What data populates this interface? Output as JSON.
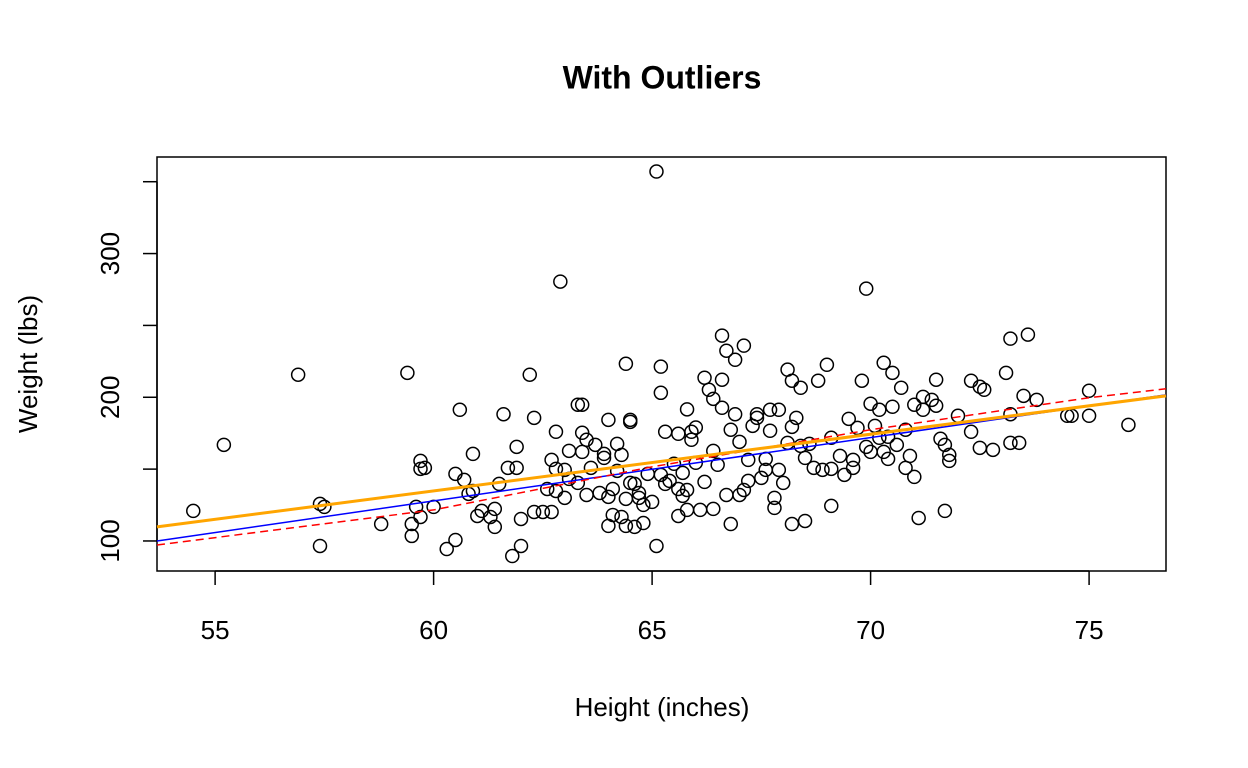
{
  "chart_data": {
    "type": "scatter",
    "title": "With Outliers",
    "x_label": "Height (inches)",
    "y_label": "Weight (lbs)",
    "xlim": [
      53.67,
      76.76
    ],
    "ylim": [
      79.1,
      367.2
    ],
    "xticks": [
      55,
      60,
      65,
      70,
      75
    ],
    "yticks": [
      100,
      200,
      300
    ],
    "ytick_marks": [
      150,
      250,
      350
    ],
    "point_color": "#000000",
    "x": [
      54.5,
      55.2,
      56.9,
      57.4,
      57.5,
      57.4,
      58.8,
      59.4,
      59.5,
      59.5,
      59.6,
      59.7,
      59.7,
      59.7,
      59.8,
      60.0,
      60.3,
      60.5,
      60.5,
      60.6,
      60.7,
      60.8,
      60.9,
      60.9,
      61.0,
      61.1,
      61.3,
      61.4,
      61.4,
      61.5,
      61.6,
      61.7,
      61.8,
      61.9,
      61.9,
      62.0,
      62.0,
      62.2,
      62.3,
      62.3,
      62.5,
      62.6,
      62.7,
      62.8,
      62.8,
      62.7,
      62.8,
      62.9,
      63.0,
      63.0,
      63.1,
      63.1,
      63.3,
      63.3,
      63.4,
      63.4,
      63.4,
      63.5,
      63.5,
      63.6,
      63.7,
      63.8,
      63.9,
      63.9,
      64.0,
      64.0,
      64.0,
      64.1,
      64.1,
      64.2,
      64.2,
      64.3,
      64.3,
      64.4,
      64.4,
      64.4,
      64.5,
      64.5,
      64.5,
      64.6,
      64.6,
      64.7,
      64.7,
      64.8,
      64.8,
      64.9,
      65.0,
      65.1,
      65.1,
      65.2,
      65.2,
      65.2,
      65.3,
      65.3,
      65.4,
      65.5,
      65.6,
      65.6,
      65.6,
      65.7,
      65.7,
      65.8,
      65.8,
      65.8,
      65.9,
      65.9,
      66.0,
      66.0,
      66.1,
      66.2,
      66.2,
      66.3,
      66.4,
      66.4,
      66.4,
      66.5,
      66.6,
      66.6,
      66.6,
      66.7,
      66.7,
      66.8,
      66.8,
      66.9,
      66.9,
      67.0,
      67.0,
      67.1,
      67.1,
      67.2,
      67.2,
      67.3,
      67.4,
      67.4,
      67.5,
      67.6,
      67.6,
      67.7,
      67.7,
      67.8,
      67.8,
      67.9,
      67.9,
      68.0,
      68.1,
      68.1,
      68.2,
      68.2,
      68.2,
      68.3,
      68.4,
      68.4,
      68.5,
      68.5,
      68.6,
      68.7,
      68.8,
      68.9,
      69.0,
      69.1,
      69.1,
      69.1,
      69.3,
      69.4,
      69.5,
      69.6,
      69.6,
      69.7,
      69.8,
      69.9,
      69.9,
      70.0,
      70.0,
      70.1,
      70.2,
      70.2,
      70.3,
      70.3,
      70.4,
      70.4,
      70.5,
      70.5,
      70.6,
      70.7,
      70.8,
      70.8,
      70.9,
      71.0,
      71.0,
      71.1,
      71.2,
      71.2,
      71.4,
      71.5,
      71.5,
      71.6,
      71.7,
      71.7,
      71.8,
      71.8,
      72.0,
      72.3,
      72.3,
      72.5,
      72.5,
      72.6,
      72.8,
      73.1,
      73.2,
      73.2,
      73.2,
      73.4,
      73.5,
      73.6,
      73.8,
      74.5,
      74.6,
      75.0,
      75.0,
      75.9
    ],
    "values": [
      120.9,
      166.9,
      215.7,
      125.8,
      123.7,
      96.5,
      111.8,
      217,
      111.8,
      103.5,
      123.7,
      116.7,
      155.7,
      150.2,
      150.9,
      123.7,
      94.4,
      146.7,
      100.7,
      191.3,
      142.5,
      132.8,
      160.6,
      134.8,
      117.4,
      120.9,
      116.7,
      122.3,
      109.8,
      139.7,
      188.2,
      150.9,
      89.5,
      165.5,
      150.9,
      96.5,
      115.3,
      215.7,
      185.7,
      120.2,
      120.2,
      136.2,
      156.4,
      150.2,
      176,
      120.2,
      134.8,
      280.5,
      130,
      149.5,
      162.7,
      143.2,
      140.4,
      194.8,
      194.8,
      175.3,
      162,
      170.4,
      132,
      150.9,
      166.9,
      133.4,
      157.8,
      160.6,
      184.3,
      110.5,
      130.7,
      136.2,
      118.1,
      148.8,
      167.6,
      116.7,
      159.9,
      129.3,
      223.3,
      110.5,
      184.3,
      182.9,
      140.4,
      139.7,
      109.8,
      133.4,
      130,
      112.5,
      125.1,
      146.7,
      127.2,
      96.5,
      357.1,
      146,
      203.1,
      221.3,
      176,
      139.7,
      141.8,
      153.7,
      117.4,
      136.2,
      174.6,
      147.4,
      131.4,
      135.5,
      191.6,
      121.6,
      176,
      170.4,
      179,
      154.4,
      121.6,
      141.1,
      213.6,
      205.2,
      122.3,
      162.7,
      198.9,
      153,
      192.7,
      242.9,
      212.2,
      132,
      232.4,
      177.4,
      111.8,
      188.2,
      226.1,
      169,
      132,
      235.9,
      135.5,
      141.8,
      156.4,
      180.1,
      185.7,
      188.2,
      143.9,
      157.1,
      149.5,
      176.7,
      191.3,
      130,
      123,
      191.3,
      149.5,
      140.4,
      168.3,
      219.2,
      211.5,
      111.8,
      179.4,
      185.7,
      166.2,
      206.6,
      113.9,
      157.8,
      167.6,
      150.9,
      211.5,
      149.5,
      222.6,
      124.4,
      171.8,
      150.2,
      159.2,
      146,
      185,
      156.4,
      150.9,
      178.7,
      211.5,
      275.6,
      165.5,
      195.5,
      162,
      180.1,
      191.3,
      171.8,
      224,
      162,
      172.5,
      157.1,
      193.4,
      217,
      166.9,
      206.6,
      177.4,
      150.9,
      159.2,
      194.8,
      144.6,
      116,
      200.3,
      191.3,
      198.2,
      194.1,
      212.2,
      171.1,
      166.9,
      120.9,
      159.9,
      155.7,
      187.1,
      211.5,
      176,
      207.3,
      164.8,
      205.2,
      163.4,
      217,
      188.2,
      240.8,
      168.3,
      168.3,
      201,
      243.6,
      198.2,
      187.1,
      187.1,
      204.5,
      187.1,
      180.8
    ],
    "lines": [
      {
        "color": "blue",
        "dashed": false,
        "x": [
          53.67,
          76.76
        ],
        "values": [
          100.0,
          201.7
        ]
      },
      {
        "color": "red",
        "dashed": true,
        "x": [
          53.67,
          60,
          65,
          70,
          75,
          76.76
        ],
        "values": [
          97.2,
          121.6,
          151.6,
          177.4,
          199.7,
          205.9
        ]
      },
      {
        "color": "orange",
        "dashed": false,
        "x": [
          53.67,
          76.76
        ],
        "values": [
          109.8,
          201.0
        ]
      }
    ]
  }
}
